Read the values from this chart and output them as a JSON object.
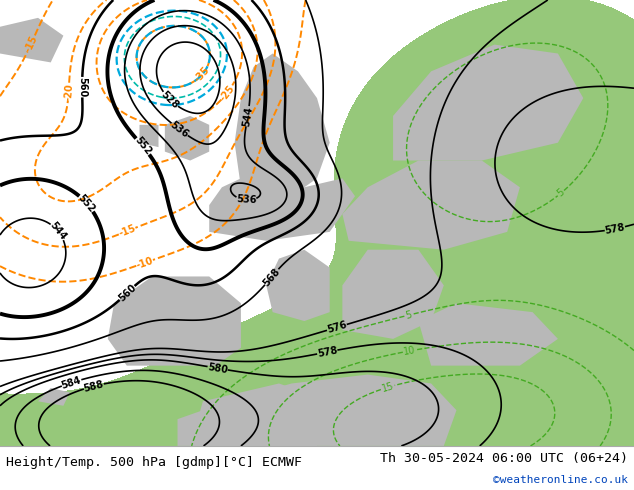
{
  "title_left": "Height/Temp. 500 hPa [gdmp][°C] ECMWF",
  "title_right": "Th 30-05-2024 06:00 UTC (06+24)",
  "credit": "©weatheronline.co.uk",
  "bg_color": "#d8d8d8",
  "green_color": "#96c87a",
  "land_gray": "#b8b8b8",
  "bottom_bar_color": "#ffffff",
  "title_fontsize": 9.5,
  "credit_fontsize": 8,
  "credit_color": "#0044bb",
  "figsize": [
    6.34,
    4.9
  ],
  "dpi": 100
}
